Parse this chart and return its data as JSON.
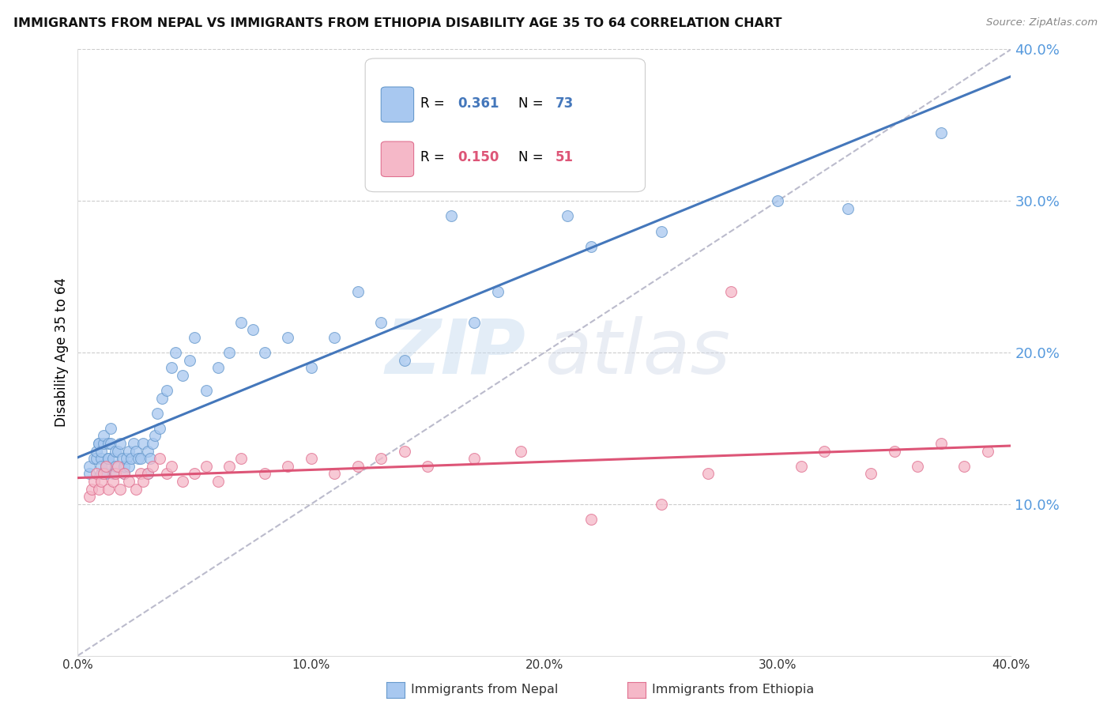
{
  "title": "IMMIGRANTS FROM NEPAL VS IMMIGRANTS FROM ETHIOPIA DISABILITY AGE 35 TO 64 CORRELATION CHART",
  "source": "Source: ZipAtlas.com",
  "ylabel": "Disability Age 35 to 64",
  "xlabel_nepal": "Immigrants from Nepal",
  "xlabel_ethiopia": "Immigrants from Ethiopia",
  "xlim": [
    0.0,
    0.4
  ],
  "ylim": [
    0.0,
    0.4
  ],
  "yticks": [
    0.1,
    0.2,
    0.3,
    0.4
  ],
  "xticks": [
    0.0,
    0.1,
    0.2,
    0.3,
    0.4
  ],
  "nepal_R": 0.361,
  "nepal_N": 73,
  "ethiopia_R": 0.15,
  "ethiopia_N": 51,
  "nepal_color": "#A8C8F0",
  "ethiopia_color": "#F5B8C8",
  "nepal_edge_color": "#6699CC",
  "ethiopia_edge_color": "#E07090",
  "nepal_line_color": "#4477BB",
  "ethiopia_line_color": "#DD5577",
  "diagonal_color": "#BBBBCC",
  "right_axis_color": "#5599DD",
  "nepal_points_x": [
    0.005,
    0.005,
    0.007,
    0.008,
    0.008,
    0.009,
    0.009,
    0.01,
    0.01,
    0.01,
    0.01,
    0.011,
    0.011,
    0.012,
    0.012,
    0.013,
    0.013,
    0.013,
    0.014,
    0.014,
    0.015,
    0.015,
    0.016,
    0.016,
    0.017,
    0.018,
    0.019,
    0.02,
    0.02,
    0.021,
    0.022,
    0.022,
    0.023,
    0.024,
    0.025,
    0.026,
    0.027,
    0.028,
    0.03,
    0.03,
    0.031,
    0.032,
    0.033,
    0.034,
    0.035,
    0.036,
    0.038,
    0.04,
    0.042,
    0.045,
    0.048,
    0.05,
    0.055,
    0.06,
    0.065,
    0.07,
    0.075,
    0.08,
    0.09,
    0.1,
    0.11,
    0.12,
    0.13,
    0.14,
    0.16,
    0.17,
    0.18,
    0.21,
    0.22,
    0.25,
    0.3,
    0.33,
    0.37
  ],
  "nepal_points_y": [
    0.12,
    0.125,
    0.13,
    0.13,
    0.135,
    0.14,
    0.14,
    0.13,
    0.12,
    0.125,
    0.135,
    0.14,
    0.145,
    0.12,
    0.125,
    0.13,
    0.13,
    0.14,
    0.14,
    0.15,
    0.12,
    0.13,
    0.125,
    0.135,
    0.135,
    0.14,
    0.13,
    0.12,
    0.125,
    0.13,
    0.125,
    0.135,
    0.13,
    0.14,
    0.135,
    0.13,
    0.13,
    0.14,
    0.12,
    0.135,
    0.13,
    0.14,
    0.145,
    0.16,
    0.15,
    0.17,
    0.175,
    0.19,
    0.2,
    0.185,
    0.195,
    0.21,
    0.175,
    0.19,
    0.2,
    0.22,
    0.215,
    0.2,
    0.21,
    0.19,
    0.21,
    0.24,
    0.22,
    0.195,
    0.29,
    0.22,
    0.24,
    0.29,
    0.27,
    0.28,
    0.3,
    0.295,
    0.345
  ],
  "ethiopia_points_x": [
    0.005,
    0.006,
    0.007,
    0.008,
    0.009,
    0.01,
    0.011,
    0.012,
    0.013,
    0.015,
    0.016,
    0.017,
    0.018,
    0.02,
    0.022,
    0.025,
    0.027,
    0.028,
    0.03,
    0.032,
    0.035,
    0.038,
    0.04,
    0.045,
    0.05,
    0.055,
    0.06,
    0.065,
    0.07,
    0.08,
    0.09,
    0.1,
    0.11,
    0.12,
    0.13,
    0.14,
    0.15,
    0.17,
    0.19,
    0.22,
    0.25,
    0.27,
    0.28,
    0.31,
    0.32,
    0.34,
    0.35,
    0.36,
    0.37,
    0.38,
    0.39
  ],
  "ethiopia_points_y": [
    0.105,
    0.11,
    0.115,
    0.12,
    0.11,
    0.115,
    0.12,
    0.125,
    0.11,
    0.115,
    0.12,
    0.125,
    0.11,
    0.12,
    0.115,
    0.11,
    0.12,
    0.115,
    0.12,
    0.125,
    0.13,
    0.12,
    0.125,
    0.115,
    0.12,
    0.125,
    0.115,
    0.125,
    0.13,
    0.12,
    0.125,
    0.13,
    0.12,
    0.125,
    0.13,
    0.135,
    0.125,
    0.13,
    0.135,
    0.09,
    0.1,
    0.12,
    0.24,
    0.125,
    0.135,
    0.12,
    0.135,
    0.125,
    0.14,
    0.125,
    0.135
  ],
  "watermark_zip": "ZIP",
  "watermark_atlas": "atlas"
}
